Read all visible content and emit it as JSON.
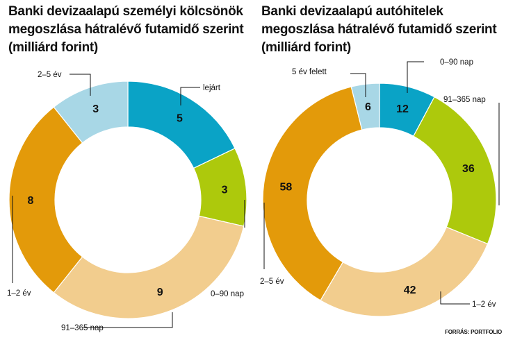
{
  "colors": {
    "blue": "#0aa3c6",
    "green": "#adc90c",
    "peach": "#f2cd8e",
    "orange": "#e39a0a",
    "lightblue": "#a8d7e6"
  },
  "source": "FORRÁS: PORTFOLIO",
  "chart_data": [
    {
      "type": "pie",
      "title_lines": [
        "Banki devizaalapú személyi kölcsönök",
        "megoszlása hátralévő futamidő szerint",
        "(milliárd forint)"
      ],
      "categories": [
        "lejárt",
        "0–90 nap",
        "91–365 nap",
        "1–2 év",
        "2–5 év"
      ],
      "values": [
        5,
        3,
        9,
        8,
        3
      ],
      "value_labels": [
        "5",
        "3",
        "9",
        "8",
        "3"
      ],
      "colors": [
        "#0aa3c6",
        "#adc90c",
        "#f2cd8e",
        "#e39a0a",
        "#a8d7e6"
      ],
      "legend": "callouts"
    },
    {
      "type": "pie",
      "title_lines": [
        "Banki devizaalapú autóhitelek",
        "megoszlása hátralévő futamidő szerint",
        "(milliárd forint)"
      ],
      "categories": [
        "0–90 nap",
        "91–365 nap",
        "1–2 év",
        "2–5 év",
        "5 év felett"
      ],
      "values": [
        12,
        36,
        42,
        58,
        6
      ],
      "value_labels": [
        "12",
        "36",
        "42",
        "58",
        "6"
      ],
      "colors": [
        "#0aa3c6",
        "#adc90c",
        "#f2cd8e",
        "#e39a0a",
        "#a8d7e6"
      ],
      "legend": "callouts"
    }
  ]
}
